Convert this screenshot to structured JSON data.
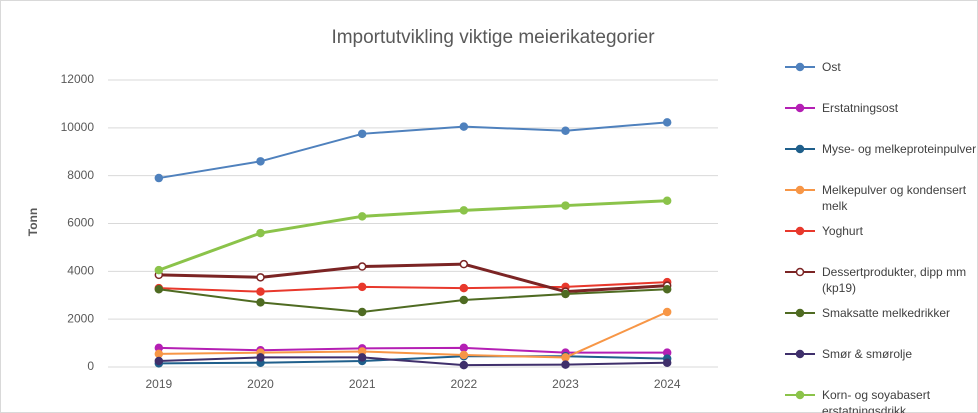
{
  "chart_data": {
    "type": "line",
    "title": "Importutvikling viktige meierikategorier",
    "y_label": "Tonn",
    "categories": [
      "2019",
      "2020",
      "2021",
      "2022",
      "2023",
      "2024"
    ],
    "ylim": [
      0,
      12000
    ],
    "yticks": [
      0,
      2000,
      4000,
      6000,
      8000,
      10000,
      12000
    ],
    "grid": true,
    "legend": "right",
    "series": [
      {
        "name": "Ost",
        "color": "#4f81bd",
        "values": [
          7900,
          8600,
          9750,
          10050,
          9880,
          10230
        ]
      },
      {
        "name": "Erstatningsost",
        "color": "#b41fb4",
        "values": [
          800,
          700,
          780,
          800,
          600,
          600
        ]
      },
      {
        "name": "Myse- og melkeproteinpulver",
        "color": "#1f5f8b",
        "values": [
          150,
          180,
          250,
          450,
          450,
          350
        ]
      },
      {
        "name": "Melkepulver og kondensert melk",
        "color": "#f79646",
        "values": [
          550,
          600,
          650,
          500,
          400,
          2300
        ]
      },
      {
        "name": "Yoghurt",
        "color": "#e8382c",
        "values": [
          3300,
          3150,
          3350,
          3300,
          3350,
          3550
        ]
      },
      {
        "name": "Dessertprodukter, dipp mm (kp19)",
        "color": "#7b2424",
        "marker_fill": "#ffffff",
        "values": [
          3850,
          3750,
          4200,
          4300,
          3150,
          3400
        ]
      },
      {
        "name": "Smaksatte melkedrikker",
        "color": "#4f6b22",
        "values": [
          3250,
          2700,
          2300,
          2800,
          3050,
          3250
        ]
      },
      {
        "name": "Smør & smørolje",
        "color": "#3f2f6b",
        "values": [
          250,
          400,
          400,
          80,
          100,
          180
        ]
      },
      {
        "name": "Korn- og soyabasert erstatningsdrikk",
        "color": "#8bc34a",
        "values": [
          4050,
          5600,
          6300,
          6550,
          6750,
          6950
        ]
      }
    ]
  }
}
